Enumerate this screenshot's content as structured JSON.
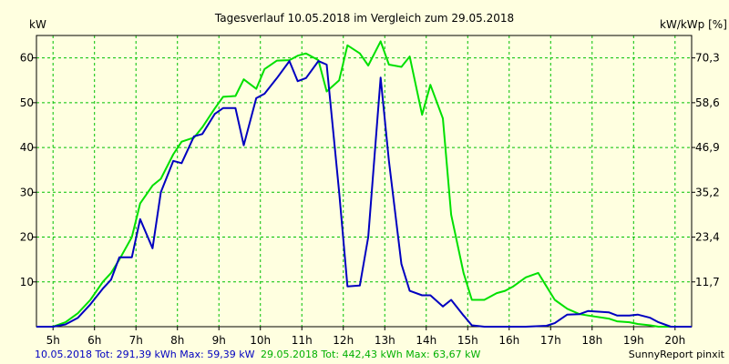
{
  "chart_data": {
    "type": "line",
    "title": "Tagesverlauf 10.05.2018 im Vergleich zum 29.05.2018",
    "ylabel_left": "kW",
    "ylabel_right": "kW/kWp [%]",
    "xlim": [
      4.6,
      20.4
    ],
    "ylim": [
      0,
      65
    ],
    "y_right_ticks": [
      "11,7",
      "23,4",
      "35,2",
      "46,9",
      "58,6",
      "70,3"
    ],
    "y_left_ticks": [
      10,
      20,
      30,
      40,
      50,
      60
    ],
    "x_ticks": [
      {
        "v": 5,
        "label": "5h"
      },
      {
        "v": 6,
        "label": "6h"
      },
      {
        "v": 7,
        "label": "7h"
      },
      {
        "v": 8,
        "label": "8h"
      },
      {
        "v": 9,
        "label": "9h"
      },
      {
        "v": 10,
        "label": "10h"
      },
      {
        "v": 11,
        "label": "11h"
      },
      {
        "v": 12,
        "label": "12h"
      },
      {
        "v": 13,
        "label": "13h"
      },
      {
        "v": 14,
        "label": "14h"
      },
      {
        "v": 15,
        "label": "15h"
      },
      {
        "v": 16,
        "label": "16h"
      },
      {
        "v": 17,
        "label": "17h"
      },
      {
        "v": 18,
        "label": "18h"
      },
      {
        "v": 19,
        "label": "19h"
      },
      {
        "v": 20,
        "label": "20h"
      }
    ],
    "grid": true,
    "background": "#ffffe0",
    "grid_color": "#00c000",
    "series": [
      {
        "name": "10.05.2018",
        "color": "#0000c0",
        "points": [
          [
            4.6,
            0
          ],
          [
            5.0,
            0
          ],
          [
            5.3,
            0.5
          ],
          [
            5.6,
            2
          ],
          [
            5.9,
            5
          ],
          [
            6.2,
            8.5
          ],
          [
            6.4,
            10.5
          ],
          [
            6.6,
            15.5
          ],
          [
            6.9,
            15.5
          ],
          [
            7.1,
            24
          ],
          [
            7.4,
            17.5
          ],
          [
            7.6,
            30
          ],
          [
            7.9,
            37
          ],
          [
            8.1,
            36.5
          ],
          [
            8.4,
            42.5
          ],
          [
            8.6,
            43
          ],
          [
            8.9,
            47.5
          ],
          [
            9.1,
            48.8
          ],
          [
            9.4,
            48.8
          ],
          [
            9.6,
            40.5
          ],
          [
            9.9,
            51
          ],
          [
            10.1,
            52
          ],
          [
            10.4,
            55.5
          ],
          [
            10.7,
            59.3
          ],
          [
            10.9,
            54.8
          ],
          [
            11.1,
            55.5
          ],
          [
            11.4,
            59.3
          ],
          [
            11.6,
            58.5
          ],
          [
            11.9,
            30
          ],
          [
            12.1,
            9
          ],
          [
            12.4,
            9.2
          ],
          [
            12.6,
            20
          ],
          [
            12.9,
            55.6
          ],
          [
            13.1,
            37
          ],
          [
            13.4,
            14
          ],
          [
            13.6,
            8
          ],
          [
            13.9,
            7
          ],
          [
            14.1,
            7
          ],
          [
            14.4,
            4.5
          ],
          [
            14.6,
            6
          ],
          [
            14.9,
            2.5
          ],
          [
            15.1,
            0.3
          ],
          [
            15.4,
            0
          ],
          [
            15.9,
            0
          ],
          [
            16.4,
            0
          ],
          [
            16.9,
            0.2
          ],
          [
            17.1,
            0.8
          ],
          [
            17.4,
            2.7
          ],
          [
            17.7,
            2.8
          ],
          [
            17.9,
            3.5
          ],
          [
            18.4,
            3.2
          ],
          [
            18.6,
            2.5
          ],
          [
            18.9,
            2.5
          ],
          [
            19.1,
            2.7
          ],
          [
            19.4,
            2.0
          ],
          [
            19.6,
            1.0
          ],
          [
            19.9,
            0
          ],
          [
            20.4,
            0
          ]
        ]
      },
      {
        "name": "29.05.2018",
        "color": "#00e000",
        "points": [
          [
            4.6,
            0
          ],
          [
            5.0,
            0
          ],
          [
            5.3,
            1
          ],
          [
            5.6,
            3
          ],
          [
            5.9,
            6
          ],
          [
            6.2,
            10
          ],
          [
            6.4,
            12
          ],
          [
            6.6,
            15
          ],
          [
            6.9,
            20
          ],
          [
            7.1,
            27.5
          ],
          [
            7.4,
            31.5
          ],
          [
            7.6,
            33
          ],
          [
            7.9,
            38.5
          ],
          [
            8.1,
            41.3
          ],
          [
            8.4,
            42.2
          ],
          [
            8.6,
            44.5
          ],
          [
            8.9,
            48.7
          ],
          [
            9.1,
            51.3
          ],
          [
            9.4,
            51.5
          ],
          [
            9.6,
            55.2
          ],
          [
            9.9,
            53.1
          ],
          [
            10.1,
            57.5
          ],
          [
            10.4,
            59.4
          ],
          [
            10.7,
            59.5
          ],
          [
            10.9,
            60.5
          ],
          [
            11.1,
            61
          ],
          [
            11.4,
            59.5
          ],
          [
            11.6,
            52.5
          ],
          [
            11.9,
            55
          ],
          [
            12.1,
            62.8
          ],
          [
            12.4,
            61
          ],
          [
            12.6,
            58.3
          ],
          [
            12.9,
            63.7
          ],
          [
            13.1,
            58.5
          ],
          [
            13.4,
            58
          ],
          [
            13.6,
            60.3
          ],
          [
            13.9,
            47.3
          ],
          [
            14.1,
            54
          ],
          [
            14.4,
            46.5
          ],
          [
            14.6,
            25
          ],
          [
            14.9,
            12
          ],
          [
            15.1,
            6
          ],
          [
            15.4,
            6
          ],
          [
            15.7,
            7.5
          ],
          [
            15.9,
            8
          ],
          [
            16.1,
            9
          ],
          [
            16.4,
            11
          ],
          [
            16.7,
            12
          ],
          [
            16.9,
            9
          ],
          [
            17.1,
            6
          ],
          [
            17.4,
            4
          ],
          [
            17.7,
            2.8
          ],
          [
            17.9,
            2.5
          ],
          [
            18.4,
            1.8
          ],
          [
            18.6,
            1.2
          ],
          [
            18.9,
            1
          ],
          [
            19.1,
            0.6
          ],
          [
            19.4,
            0.3
          ],
          [
            19.6,
            0
          ],
          [
            20.4,
            0
          ]
        ]
      }
    ]
  },
  "footer": {
    "series1_text": "10.05.2018 Tot: 291,39 kWh Max: 59,39 kW",
    "series2_text": "29.05.2018 Tot: 442,43 kWh Max: 63,67 kW",
    "credit": "SunnyReport pinxit"
  }
}
